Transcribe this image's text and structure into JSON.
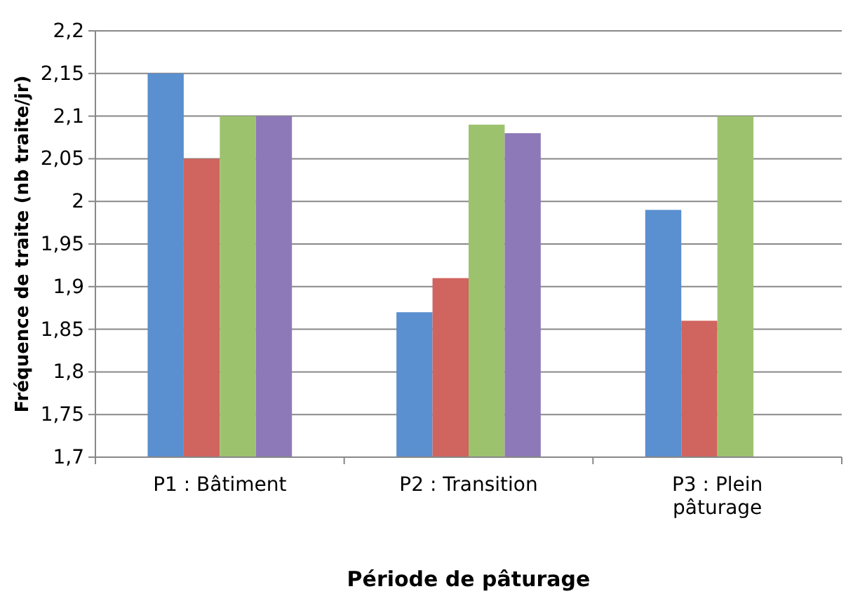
{
  "chart_data": {
    "type": "bar",
    "xlabel": "Période de pâturage",
    "ylabel": "Fréquence de traite (nb traite/jr)",
    "categories": [
      "P1 : Bâtiment",
      "P2 : Transition",
      "P3 : Plein pâturage"
    ],
    "series": [
      {
        "color": "#5a8fd0",
        "values": [
          2.15,
          1.87,
          1.99
        ]
      },
      {
        "color": "#d0645e",
        "values": [
          2.05,
          1.91,
          1.86
        ]
      },
      {
        "color": "#9dc26e",
        "values": [
          2.1,
          2.09,
          2.1
        ]
      },
      {
        "color": "#8e79b8",
        "values": [
          2.1,
          2.08,
          null
        ]
      }
    ],
    "ylim": [
      1.7,
      2.2
    ],
    "yticks": [
      {
        "value": 1.7,
        "label": "1,7"
      },
      {
        "value": 1.75,
        "label": "1,75"
      },
      {
        "value": 1.8,
        "label": "1,8"
      },
      {
        "value": 1.85,
        "label": "1,85"
      },
      {
        "value": 1.9,
        "label": "1,9"
      },
      {
        "value": 1.95,
        "label": "1,95"
      },
      {
        "value": 2,
        "label": "2"
      },
      {
        "value": 2.05,
        "label": "2,05"
      },
      {
        "value": 2.1,
        "label": "2,1"
      },
      {
        "value": 2.15,
        "label": "2,15"
      },
      {
        "value": 2.2,
        "label": "2,2"
      }
    ],
    "grid": "y"
  }
}
